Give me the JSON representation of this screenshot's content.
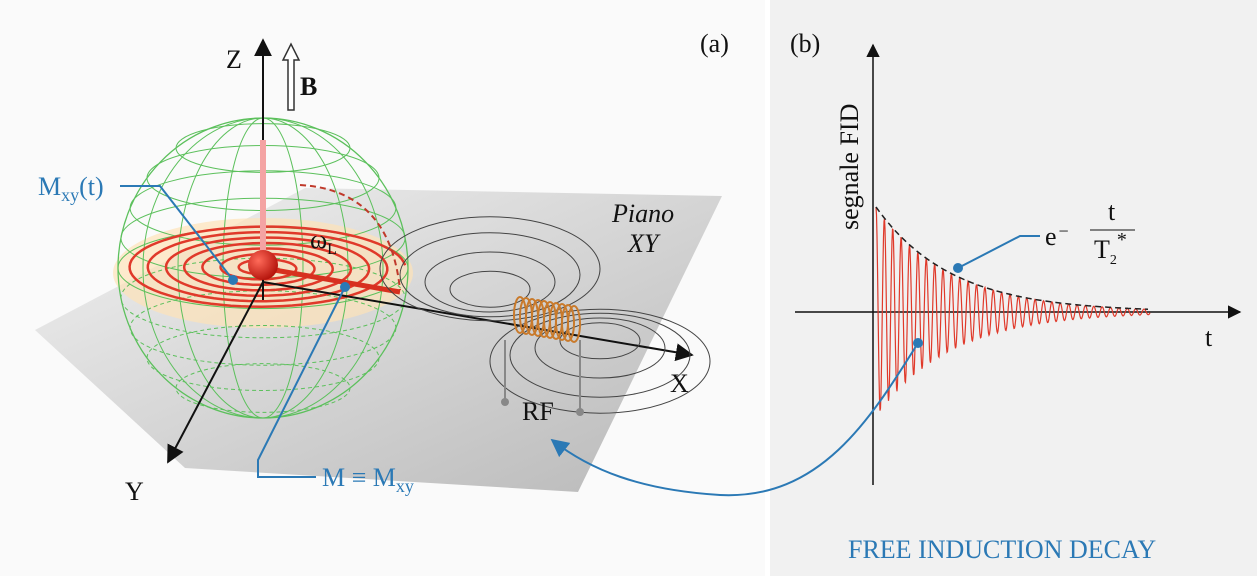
{
  "panel_a": {
    "label": "(a)",
    "axes": {
      "z": "Z",
      "x": "X",
      "y": "Y"
    },
    "field_label": "B",
    "m_xy_t": {
      "main": "M",
      "sub": "xy",
      "tail": "(t)"
    },
    "omega": {
      "main": "ω",
      "sub": "L"
    },
    "plane": {
      "line1": "Piano",
      "line2": "XY"
    },
    "rf": "RF",
    "m_equiv": {
      "main": "M ≡ M",
      "sub": "xy"
    }
  },
  "panel_b": {
    "label": "(b)",
    "y_axis": "segnale FID",
    "x_axis": "t",
    "envelope": {
      "base": "e",
      "sign": "−",
      "numerator": "t",
      "denominator": "T",
      "sub": "2",
      "sup": "*"
    },
    "caption": "FREE INDUCTION DECAY"
  }
}
